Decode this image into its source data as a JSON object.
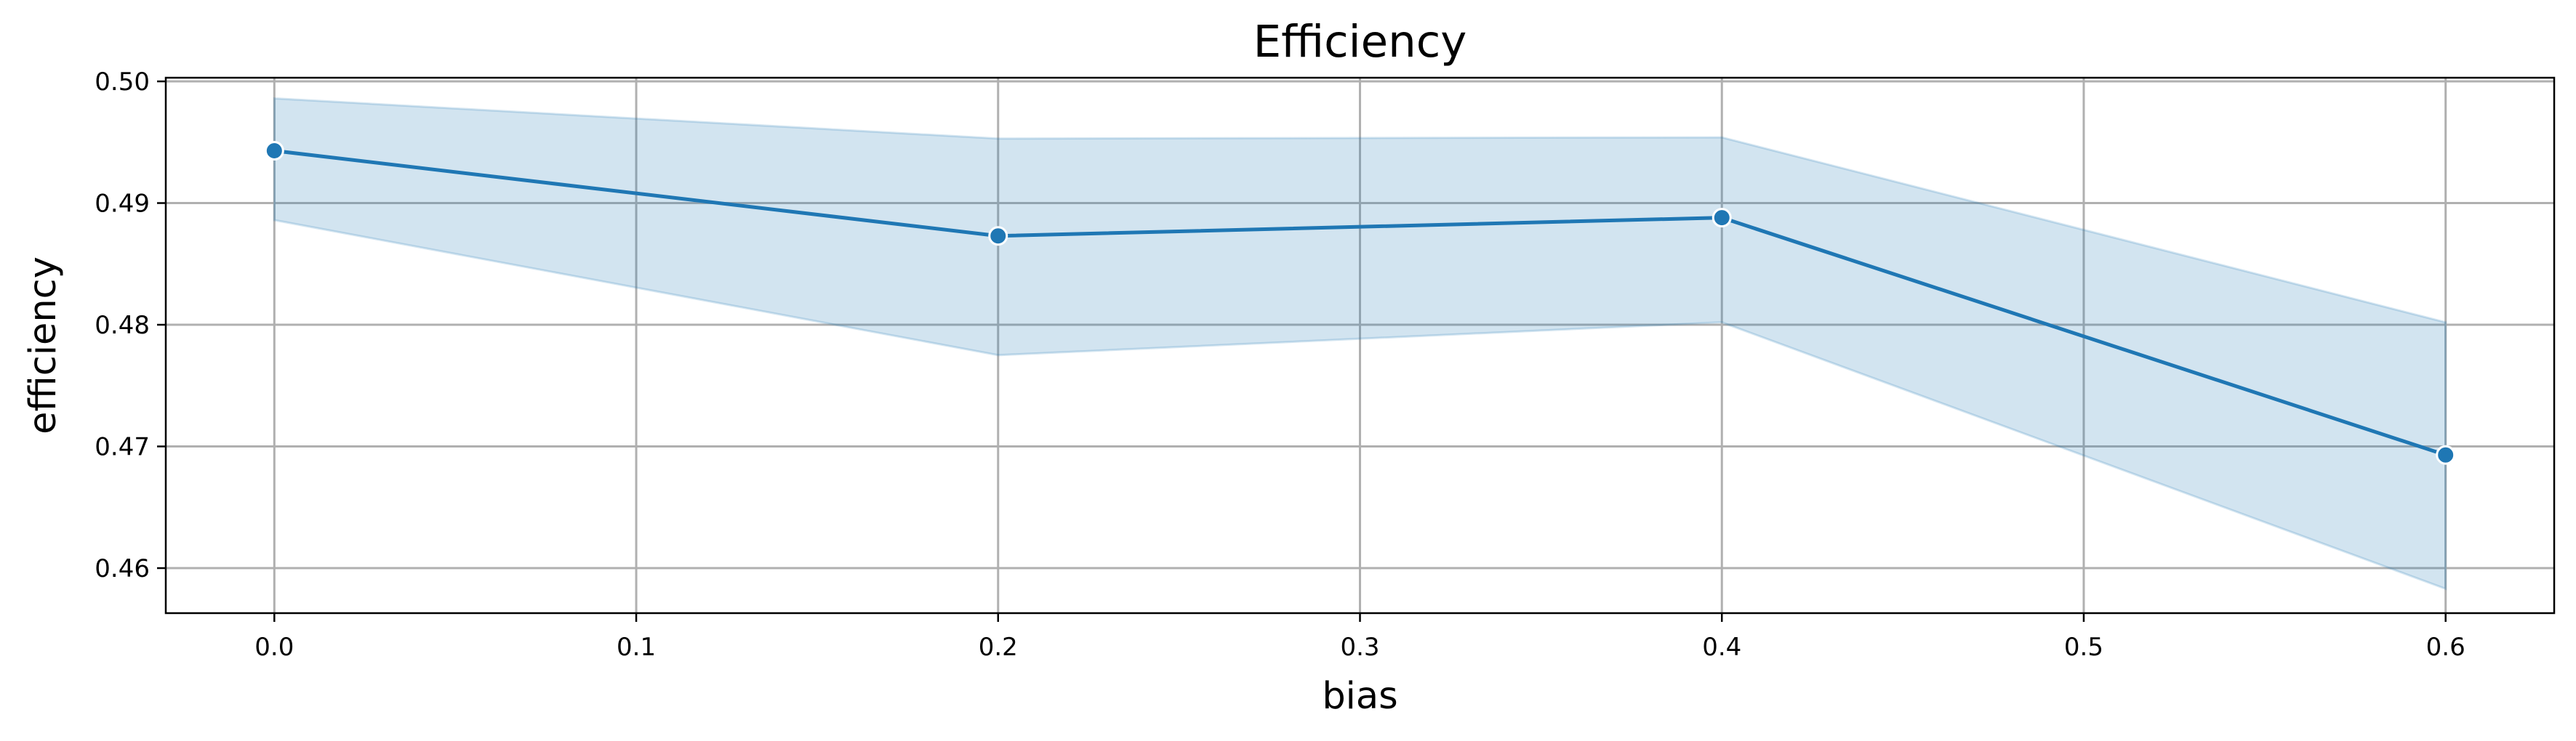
{
  "chart_data": {
    "type": "line",
    "title": "Efficiency",
    "xlabel": "bias",
    "ylabel": "efficiency",
    "xlim": [
      -0.03,
      0.63
    ],
    "ylim": [
      0.4563,
      0.5003
    ],
    "xticks": [
      0.0,
      0.1,
      0.2,
      0.3,
      0.4,
      0.5,
      0.6
    ],
    "xtick_labels": [
      "0.0",
      "0.1",
      "0.2",
      "0.3",
      "0.4",
      "0.5",
      "0.6"
    ],
    "yticks": [
      0.46,
      0.47,
      0.48,
      0.49,
      0.5
    ],
    "ytick_labels": [
      "0.46",
      "0.47",
      "0.48",
      "0.49",
      "0.50"
    ],
    "grid": true,
    "series": [
      {
        "x": [
          0.0,
          0.2,
          0.4,
          0.6
        ],
        "y": [
          0.4943,
          0.4873,
          0.4888,
          0.4693
        ],
        "ci_upper": [
          0.4986,
          0.4953,
          0.4954,
          0.4802
        ],
        "ci_lower": [
          0.4886,
          0.4775,
          0.4802,
          0.4583
        ],
        "color": "#1f77b4",
        "band_color": "#1f77b4"
      }
    ]
  }
}
